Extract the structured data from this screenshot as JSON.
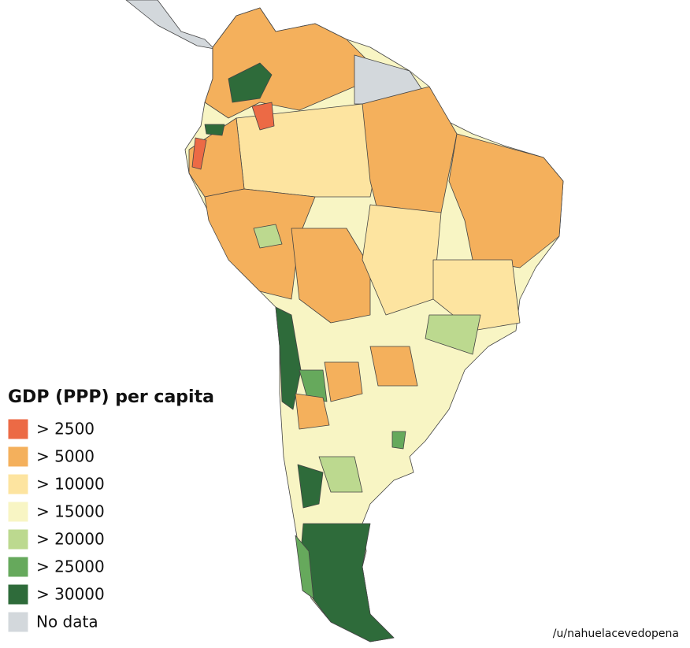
{
  "legend": {
    "title": "GDP (PPP) per capita",
    "items": [
      {
        "label": "> 2500",
        "color": "#ec6a45"
      },
      {
        "label": "> 5000",
        "color": "#f4b05c"
      },
      {
        "label": "> 10000",
        "color": "#fde4a0"
      },
      {
        "label": "> 15000",
        "color": "#f8f5c4"
      },
      {
        "label": "> 20000",
        "color": "#bcd98f"
      },
      {
        "label": "> 25000",
        "color": "#66a95c"
      },
      {
        "label": "> 30000",
        "color": "#2e6b3a"
      },
      {
        "label": "No data",
        "color": "#d3d8dc"
      }
    ]
  },
  "credit": "/u/nahuelacevedopena"
}
